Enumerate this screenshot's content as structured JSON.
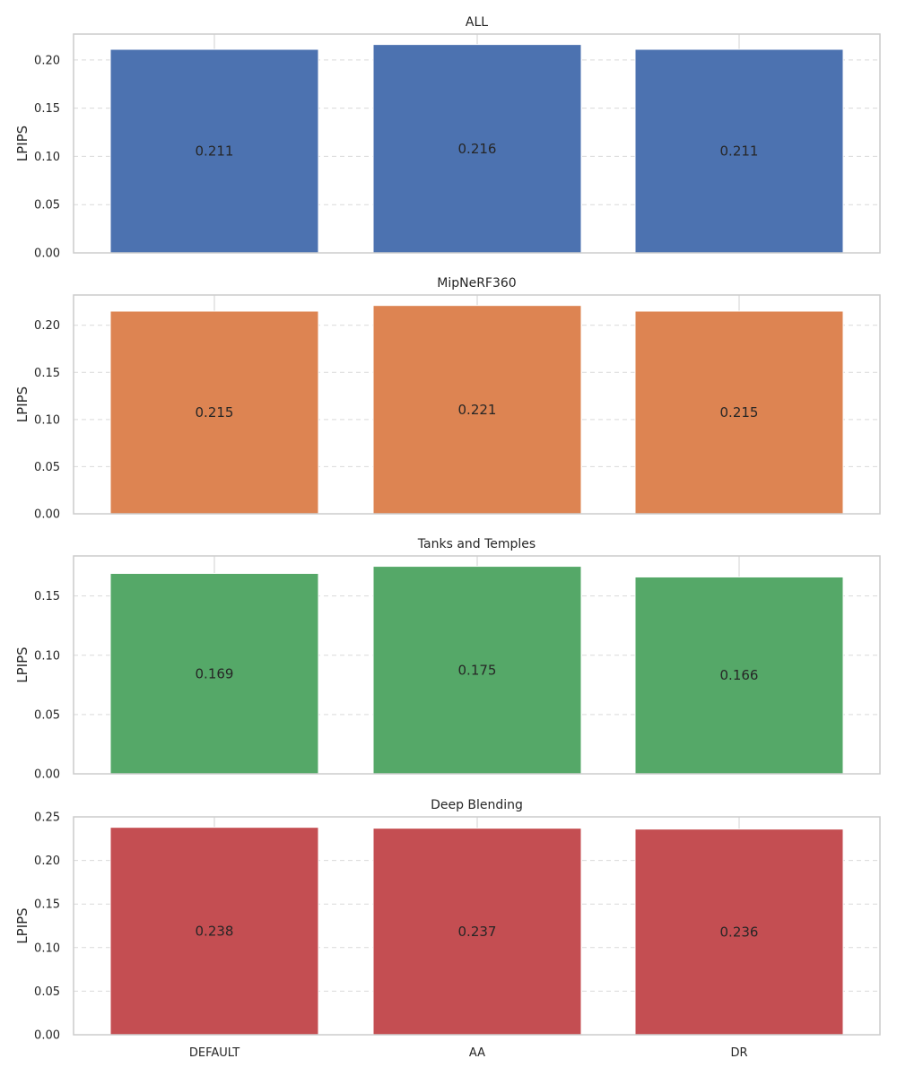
{
  "chart_data": [
    {
      "type": "bar",
      "title": "ALL",
      "ylabel": "LPIPS",
      "xlabel": "",
      "categories": [
        "DEFAULT",
        "AA",
        "DR"
      ],
      "values": [
        0.211,
        0.216,
        0.211
      ],
      "labels": [
        "0.211",
        "0.216",
        "0.211"
      ],
      "ylim": [
        0,
        0.2268
      ],
      "yticks": [
        0.0,
        0.05,
        0.1,
        0.15,
        0.2
      ],
      "ytick_labels": [
        "0.00",
        "0.05",
        "0.10",
        "0.15",
        "0.20"
      ],
      "color": "#4c72b0",
      "grid": true,
      "show_xticklabels": false
    },
    {
      "type": "bar",
      "title": "MipNeRF360",
      "ylabel": "LPIPS",
      "xlabel": "",
      "categories": [
        "DEFAULT",
        "AA",
        "DR"
      ],
      "values": [
        0.215,
        0.221,
        0.215
      ],
      "labels": [
        "0.215",
        "0.221",
        "0.215"
      ],
      "ylim": [
        0,
        0.2321
      ],
      "yticks": [
        0.0,
        0.05,
        0.1,
        0.15,
        0.2
      ],
      "ytick_labels": [
        "0.00",
        "0.05",
        "0.10",
        "0.15",
        "0.20"
      ],
      "color": "#dd8452",
      "grid": true,
      "show_xticklabels": false
    },
    {
      "type": "bar",
      "title": "Tanks and Temples",
      "ylabel": "LPIPS",
      "xlabel": "",
      "categories": [
        "DEFAULT",
        "AA",
        "DR"
      ],
      "values": [
        0.169,
        0.175,
        0.166
      ],
      "labels": [
        "0.169",
        "0.175",
        "0.166"
      ],
      "ylim": [
        0,
        0.18375
      ],
      "yticks": [
        0.0,
        0.05,
        0.1,
        0.15
      ],
      "ytick_labels": [
        "0.00",
        "0.05",
        "0.10",
        "0.15"
      ],
      "color": "#55a868",
      "grid": true,
      "show_xticklabels": false
    },
    {
      "type": "bar",
      "title": "Deep Blending",
      "ylabel": "LPIPS",
      "xlabel": "",
      "categories": [
        "DEFAULT",
        "AA",
        "DR"
      ],
      "values": [
        0.238,
        0.237,
        0.236
      ],
      "labels": [
        "0.238",
        "0.237",
        "0.236"
      ],
      "ylim": [
        0,
        0.25
      ],
      "yticks": [
        0.0,
        0.05,
        0.1,
        0.15,
        0.2,
        0.25
      ],
      "ytick_labels": [
        "0.00",
        "0.05",
        "0.10",
        "0.15",
        "0.20",
        "0.25"
      ],
      "color": "#c44e52",
      "grid": true,
      "show_xticklabels": true
    }
  ]
}
